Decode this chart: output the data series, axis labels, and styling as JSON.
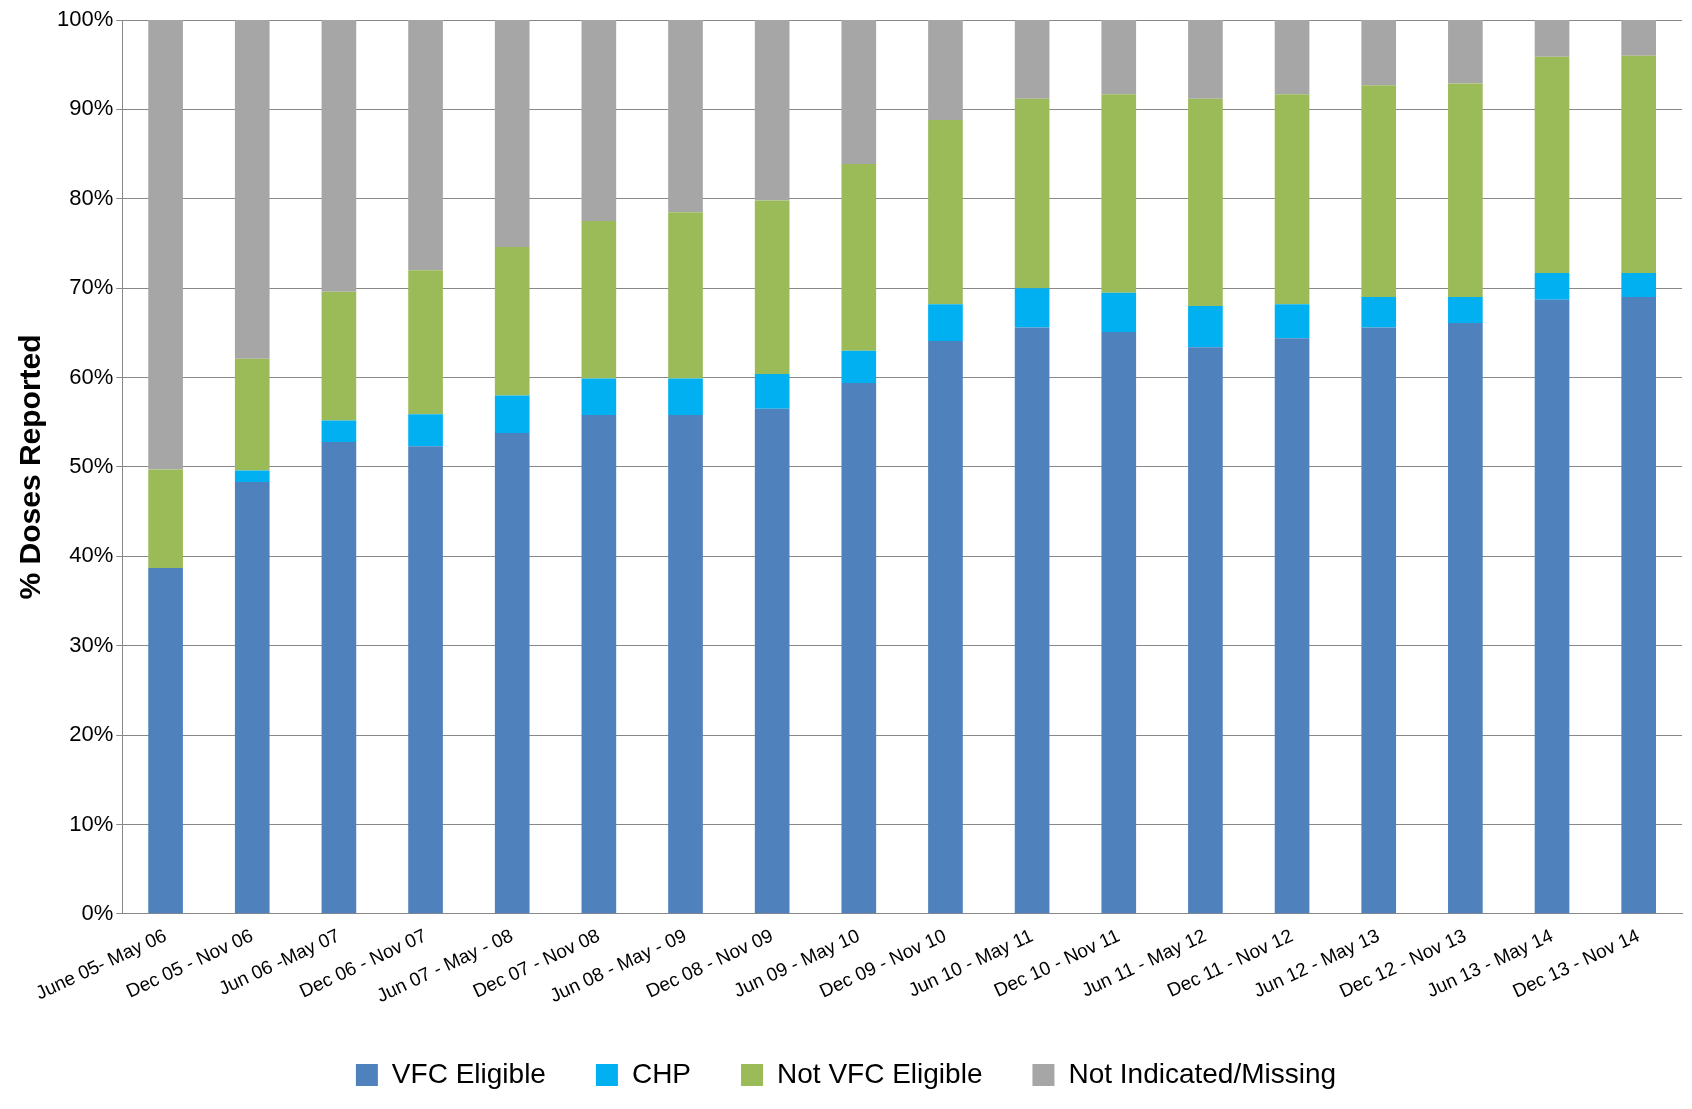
{
  "chart_data": {
    "type": "bar",
    "stacked": true,
    "ylabel": "% Doses Reported",
    "categories": [
      "June 05- May 06",
      "Dec 05 - Nov 06",
      "Jun 06 -May 07",
      "Dec 06 - Nov 07",
      "Jun 07 - May - 08",
      "Dec 07 - Nov 08",
      "Jun 08 - May - 09",
      "Dec 08 - Nov 09",
      "Jun 09 - May 10",
      "Dec 09 - Nov 10",
      "Jun 10 - May 11",
      "Dec 10 - Nov 11",
      "Jun 11 - May 12",
      "Dec 11 - Nov 12",
      "Jun 12 - May 13",
      "Dec 12 - Nov 13",
      "Jun 13 - May 14",
      "Dec 13 - Nov 14"
    ],
    "series": [
      {
        "name": "VFC Eligible",
        "color": "#4f81bd",
        "values": [
          38.7,
          48.3,
          52.8,
          52.3,
          53.8,
          55.8,
          55.8,
          56.5,
          59.4,
          64.1,
          65.6,
          65.1,
          63.4,
          64.4,
          65.6,
          66.1,
          68.7,
          69.0
        ]
      },
      {
        "name": "CHP",
        "color": "#00b0f0",
        "values": [
          0,
          1.3,
          2.4,
          3.6,
          4.2,
          4.1,
          4.1,
          3.9,
          3.6,
          4.1,
          4.4,
          4.4,
          4.6,
          3.8,
          3.4,
          2.9,
          3.0,
          2.7
        ]
      },
      {
        "name": "Not VFC Eligible",
        "color": "#9bbb59",
        "values": [
          11.0,
          12.5,
          14.4,
          16.1,
          16.6,
          17.6,
          18.6,
          19.4,
          20.9,
          20.6,
          21.2,
          22.2,
          23.2,
          23.5,
          23.7,
          23.9,
          24.2,
          24.3
        ]
      },
      {
        "name": "Not Indicated/Missing",
        "color": "#a6a6a6",
        "values": [
          50.3,
          37.9,
          30.4,
          28.0,
          25.4,
          22.5,
          21.5,
          20.2,
          16.1,
          11.2,
          8.8,
          8.3,
          8.8,
          8.3,
          7.3,
          7.1,
          4.1,
          4.0
        ]
      }
    ],
    "ylim": [
      0,
      100
    ],
    "yticks": [
      {
        "value": 0,
        "label": "0%"
      },
      {
        "value": 10,
        "label": "10%"
      },
      {
        "value": 20,
        "label": "20%"
      },
      {
        "value": 30,
        "label": "30%"
      },
      {
        "value": 40,
        "label": "40%"
      },
      {
        "value": 50,
        "label": "50%"
      },
      {
        "value": 60,
        "label": "60%"
      },
      {
        "value": 70,
        "label": "70%"
      },
      {
        "value": 80,
        "label": "80%"
      },
      {
        "value": 90,
        "label": "90%"
      },
      {
        "value": 100,
        "label": "100%"
      }
    ],
    "grid": "y",
    "legend": "bottom"
  }
}
